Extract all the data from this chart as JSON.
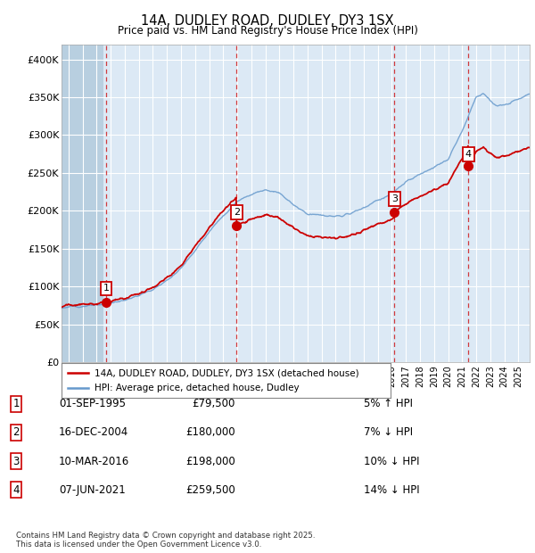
{
  "title_line1": "14A, DUDLEY ROAD, DUDLEY, DY3 1SX",
  "title_line2": "Price paid vs. HM Land Registry's House Price Index (HPI)",
  "ylim": [
    0,
    420000
  ],
  "yticks": [
    0,
    50000,
    100000,
    150000,
    200000,
    250000,
    300000,
    350000,
    400000
  ],
  "ytick_labels": [
    "£0",
    "£50K",
    "£100K",
    "£150K",
    "£200K",
    "£250K",
    "£300K",
    "£350K",
    "£400K"
  ],
  "xlim_start": 1992.5,
  "xlim_end": 2025.8,
  "background_color": "#ffffff",
  "plot_bg_color": "#dce9f5",
  "hatch_region_end": 1995.5,
  "grid_color": "#ffffff",
  "sale_color": "#cc0000",
  "hpi_color": "#6699cc",
  "purchases": [
    {
      "date_year": 1995.67,
      "price": 79500,
      "label": "1"
    },
    {
      "date_year": 2004.96,
      "price": 180000,
      "label": "2"
    },
    {
      "date_year": 2016.19,
      "price": 198000,
      "label": "3"
    },
    {
      "date_year": 2021.44,
      "price": 259500,
      "label": "4"
    }
  ],
  "legend_sale_label": "14A, DUDLEY ROAD, DUDLEY, DY3 1SX (detached house)",
  "legend_hpi_label": "HPI: Average price, detached house, Dudley",
  "table_rows": [
    {
      "num": "1",
      "date": "01-SEP-1995",
      "price": "£79,500",
      "pct": "5% ↑ HPI"
    },
    {
      "num": "2",
      "date": "16-DEC-2004",
      "price": "£180,000",
      "pct": "7% ↓ HPI"
    },
    {
      "num": "3",
      "date": "10-MAR-2016",
      "price": "£198,000",
      "pct": "10% ↓ HPI"
    },
    {
      "num": "4",
      "date": "07-JUN-2021",
      "price": "£259,500",
      "pct": "14% ↓ HPI"
    }
  ],
  "footer": "Contains HM Land Registry data © Crown copyright and database right 2025.\nThis data is licensed under the Open Government Licence v3.0."
}
